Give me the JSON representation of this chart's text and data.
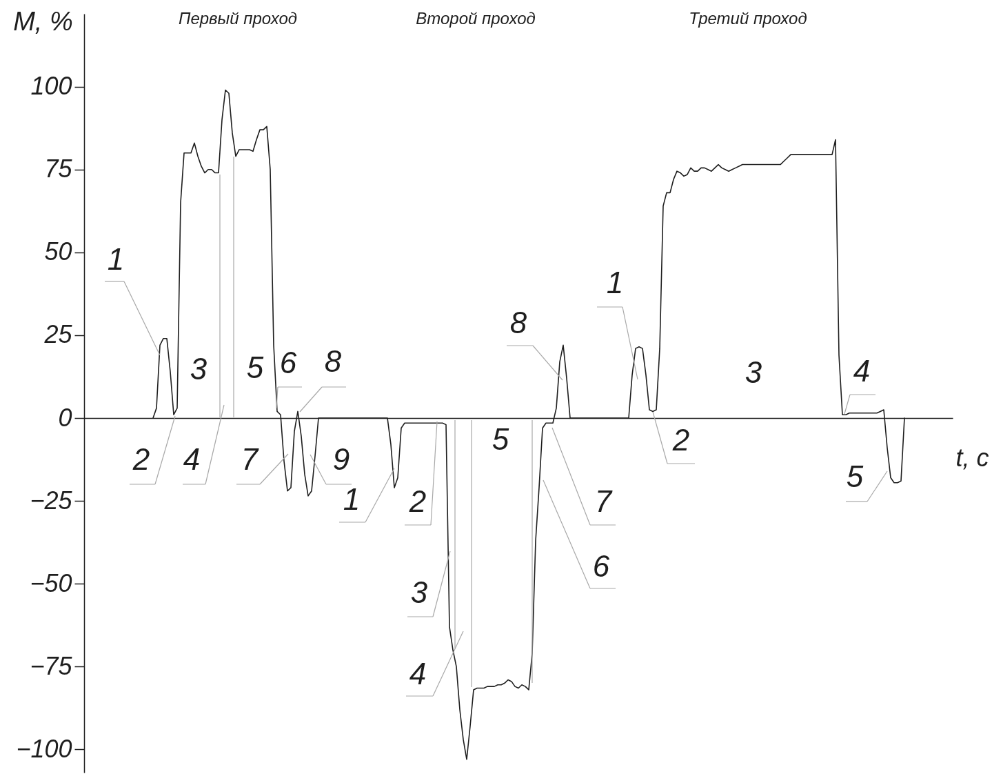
{
  "chart_data": {
    "type": "line",
    "ylabel": "M, %",
    "xlabel": "t, c",
    "annotations": [
      "Первый проход",
      "Второй проход",
      "Третий проход",
      "1",
      "2",
      "3",
      "4",
      "5",
      "6",
      "7",
      "8",
      "9",
      "1",
      "2",
      "3",
      "4",
      "5",
      "6",
      "7",
      "8",
      "1",
      "2",
      "3",
      "4",
      "5"
    ],
    "categories": [
      null,
      null,
      null,
      null,
      null,
      null,
      null,
      null,
      null,
      null,
      null,
      null,
      null,
      null,
      null,
      null,
      null,
      null,
      null,
      null,
      null,
      null,
      null,
      null,
      null,
      null,
      null,
      null,
      null,
      null,
      null,
      null,
      null,
      null,
      null,
      null,
      null,
      null,
      null,
      null,
      null,
      null,
      null,
      null,
      null,
      null,
      null,
      null,
      null,
      null,
      null,
      null,
      null,
      null,
      null,
      null,
      null,
      null,
      null,
      null,
      null,
      null,
      null,
      null,
      null,
      null,
      null,
      null,
      null,
      null,
      null,
      null,
      null,
      null,
      null,
      null,
      null,
      null,
      null,
      null,
      null,
      null,
      null,
      null,
      null,
      null,
      null,
      null,
      null,
      null,
      null,
      null,
      null,
      null,
      null,
      null,
      null,
      null,
      null,
      null,
      null,
      null,
      null,
      null,
      null,
      null,
      null,
      null,
      null,
      null,
      null,
      null,
      null,
      null,
      null,
      null,
      null,
      null,
      null,
      null,
      null,
      null,
      null,
      null,
      null,
      null,
      null,
      null,
      null,
      null,
      null,
      null,
      null,
      null,
      null,
      null,
      null,
      null,
      null,
      null,
      null,
      null,
      null,
      null,
      null,
      null,
      null,
      null,
      null,
      null,
      null,
      null,
      null,
      null,
      null,
      null,
      null,
      null,
      null,
      null,
      null,
      null,
      null,
      null,
      null,
      null,
      null,
      null,
      null,
      null,
      null,
      null,
      null,
      null,
      null,
      null,
      null,
      null,
      null,
      null,
      null,
      null,
      null,
      null,
      null,
      null,
      null,
      null,
      null,
      null,
      null,
      null,
      null,
      null,
      null,
      null,
      null,
      null,
      null,
      null,
      null,
      null,
      null,
      null,
      null,
      null,
      null,
      null,
      null,
      null,
      null,
      null,
      null,
      null,
      null,
      null,
      null,
      null,
      null,
      null,
      null,
      null,
      null,
      null,
      null,
      null,
      null,
      null,
      null,
      null,
      null,
      null,
      null,
      null,
      null,
      null,
      null,
      null,
      null,
      null,
      null,
      null,
      null,
      null,
      null,
      null,
      null,
      null,
      null,
      null,
      null,
      null,
      null
    ],
    "series": [
      {
        "color": "#1e1e1e",
        "values": [
          null,
          null,
          null,
          null,
          null,
          null,
          null,
          null,
          null,
          null,
          null,
          null,
          null,
          null,
          null,
          null,
          null,
          null,
          null,
          null,
          0,
          3,
          22,
          24,
          24,
          14,
          1,
          3,
          65,
          80,
          80,
          80,
          83,
          79,
          76,
          74,
          75,
          75,
          74,
          74,
          90,
          99,
          98,
          86,
          79,
          81,
          81,
          81,
          81,
          80.5,
          84,
          87,
          87,
          88,
          75,
          22,
          2,
          1,
          -13,
          -22,
          -21,
          -4,
          2,
          -5.5,
          -17,
          -23.5,
          -22,
          -11.5,
          0,
          0,
          0,
          0,
          0,
          0,
          0,
          0,
          0,
          0,
          0,
          0,
          0,
          0,
          0,
          0,
          0,
          0,
          0,
          0,
          0,
          -8,
          -21,
          -18,
          -3,
          -1.5,
          -1.5,
          -1.5,
          -1.5,
          -1.5,
          -1.5,
          -1.5,
          -1.5,
          -1.5,
          -1.5,
          -1.5,
          -1.5,
          -2,
          -63,
          -70,
          -75,
          -88,
          -97,
          -103,
          -93,
          -82,
          -81.5,
          -81.5,
          -81.5,
          -81,
          -81,
          -81,
          -80.5,
          -80.5,
          -80,
          -79,
          -79.5,
          -81,
          -81.5,
          -80.5,
          -81,
          -82,
          -71,
          -37,
          -21,
          -3,
          -1.5,
          -1.5,
          -1.5,
          3,
          17,
          22,
          12,
          0,
          0,
          0,
          0,
          0,
          0,
          0,
          0,
          0,
          0,
          0,
          0,
          0,
          0,
          0,
          0,
          0,
          0,
          13,
          21,
          21.5,
          21,
          13,
          2.5,
          2,
          2.5,
          21,
          64,
          68,
          68,
          72,
          74.5,
          74,
          73,
          73.5,
          75.5,
          74.5,
          74.5,
          75.5,
          75.5,
          75,
          74.5,
          75.5,
          76.5,
          75.5,
          75,
          74.5,
          75,
          75.5,
          76,
          76.5,
          76.5,
          76.5,
          76.5,
          76.5,
          76.5,
          76.5,
          76.5,
          76.5,
          76.5,
          76.5,
          76.5,
          77.5,
          78.5,
          79.5,
          79.5,
          79.5,
          79.5,
          79.5,
          79.5,
          79.5,
          79.5,
          79.5,
          79.5,
          79.5,
          79.5,
          79.5,
          84,
          19,
          1,
          1,
          1.5,
          1.5,
          1.5,
          1.5,
          1.5,
          1.5,
          1.5,
          1.5,
          1.5,
          2,
          2.5,
          -9,
          -18,
          -19.5,
          -19.5,
          -19,
          0,
          null,
          null,
          null,
          null,
          null,
          null,
          null,
          null,
          null,
          null,
          null,
          null,
          null,
          null
        ]
      }
    ],
    "ylim": [
      -107,
      122
    ],
    "yticks": [
      -100,
      -75,
      -50,
      -25,
      0,
      25,
      50,
      75,
      100
    ],
    "tick_labels": "y"
  }
}
